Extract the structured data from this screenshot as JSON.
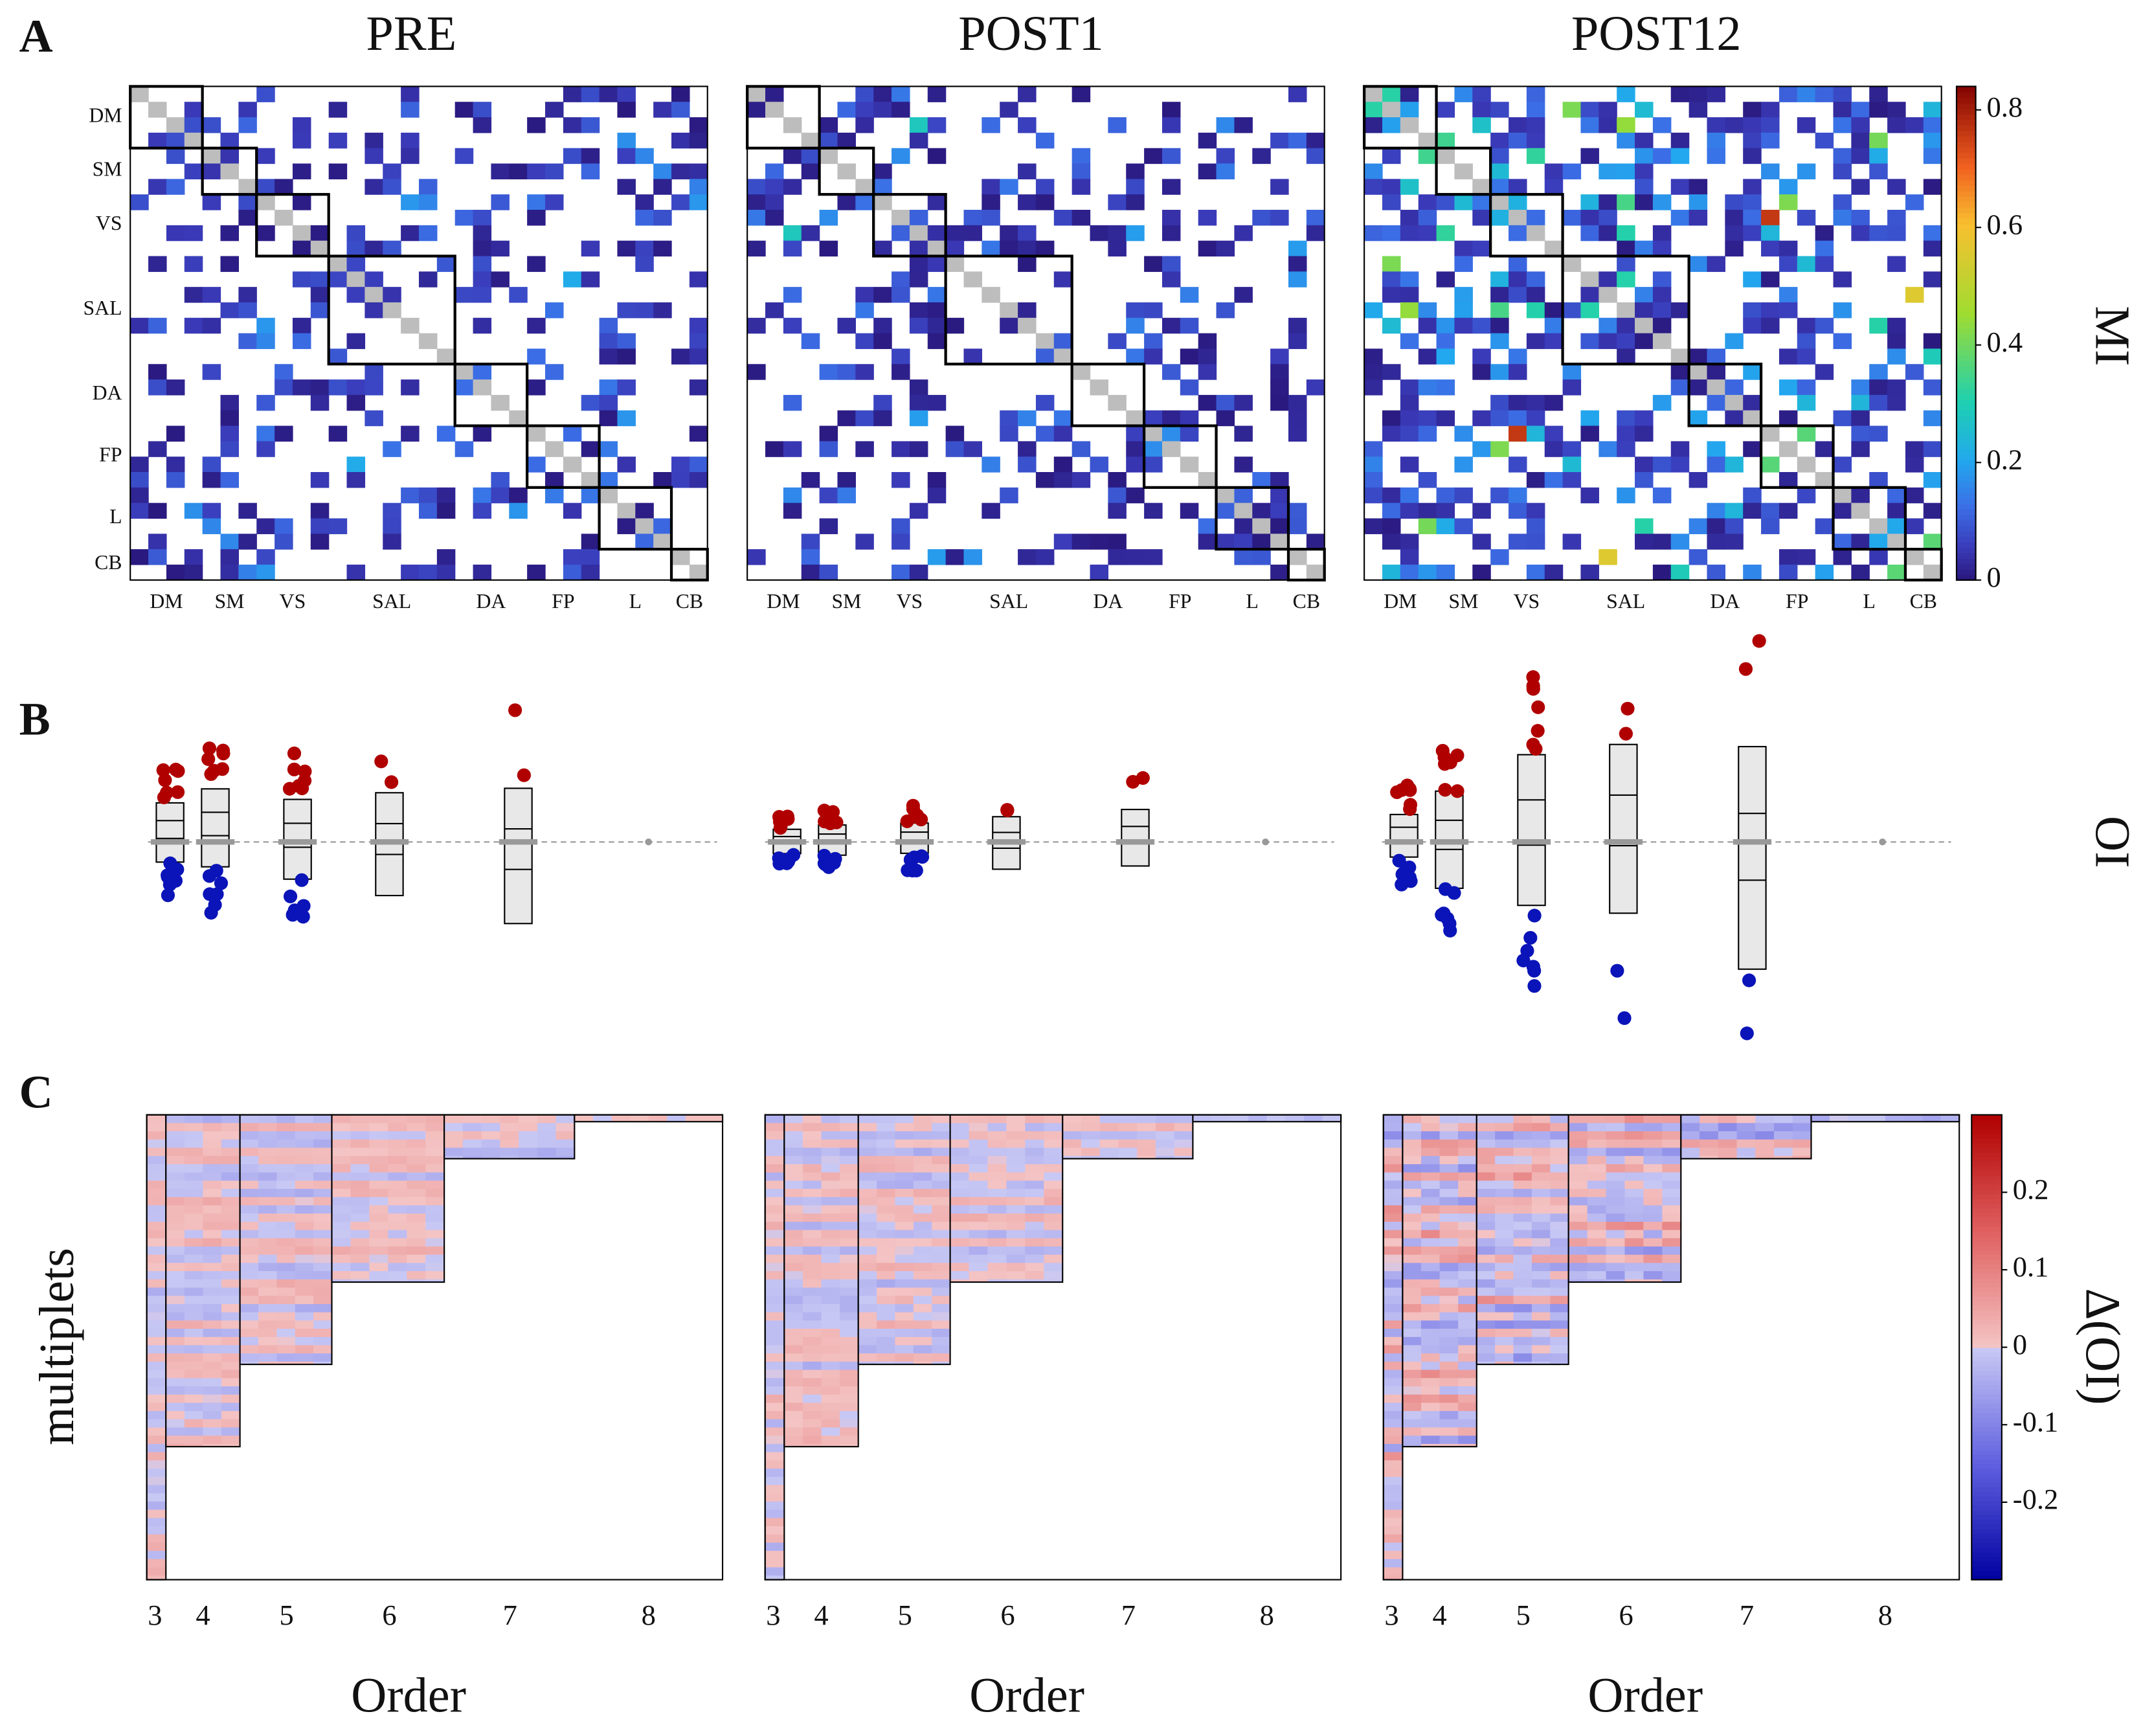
{
  "panel_labels": [
    "A",
    "B",
    "C"
  ],
  "titles": [
    "PRE",
    "POST1",
    "POST12"
  ],
  "networks": [
    "DM",
    "SM",
    "VS",
    "SAL",
    "DA",
    "FP",
    "L",
    "CB"
  ],
  "mi_colorbar": {
    "label": "MI",
    "lim": [
      0,
      0.84
    ],
    "ticks": [
      0,
      0.2,
      0.4,
      0.6,
      0.8
    ]
  },
  "oi_label": "OI",
  "panel_c": {
    "ylabel": "multiplets",
    "xlabel": "Order",
    "orders": [
      3,
      4,
      5,
      6,
      7,
      8
    ],
    "colorbar": {
      "label": "Δ(OI)",
      "lim": [
        -0.3,
        0.3
      ],
      "ticks": [
        0.2,
        0.1,
        0,
        -0.1,
        -0.2
      ]
    }
  }
}
